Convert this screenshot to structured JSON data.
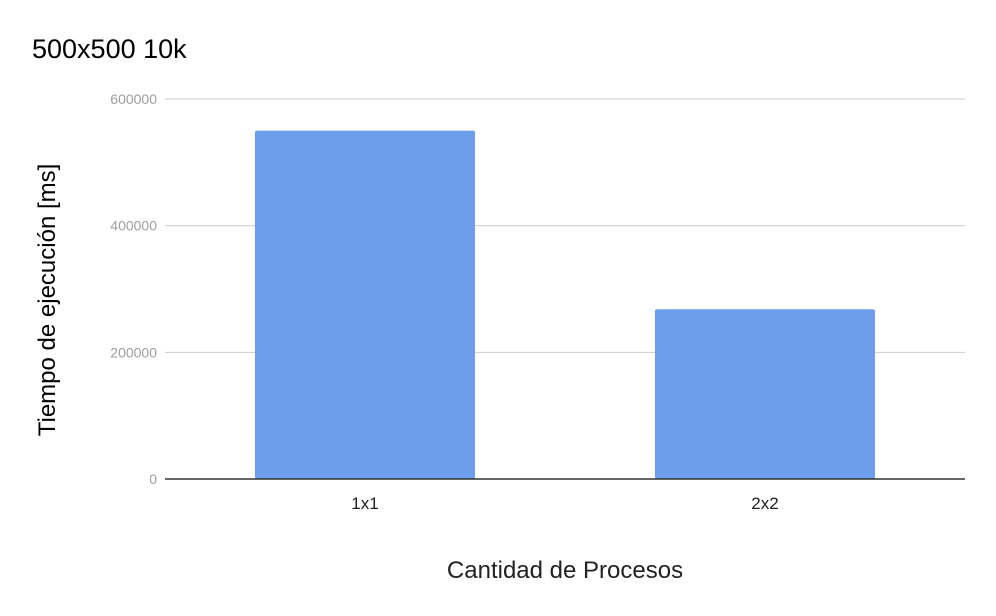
{
  "chart_data": {
    "type": "bar",
    "title": "500x500 10k",
    "xlabel": "Cantidad de Procesos",
    "ylabel": "Tiempo de ejecución [ms]",
    "categories": [
      "1x1",
      "2x2"
    ],
    "series": [
      {
        "values": [
          550000,
          268000
        ]
      }
    ],
    "ylim": [
      0,
      600000
    ],
    "yticks": [
      0,
      200000,
      400000,
      600000
    ],
    "ytick_labels": [
      "0",
      "200000",
      "400000",
      "600000"
    ],
    "grid": true,
    "legend": "none",
    "colors": {
      "bar": "#6d9eeb",
      "grid": "#cccccc",
      "baseline": "#333333"
    }
  }
}
